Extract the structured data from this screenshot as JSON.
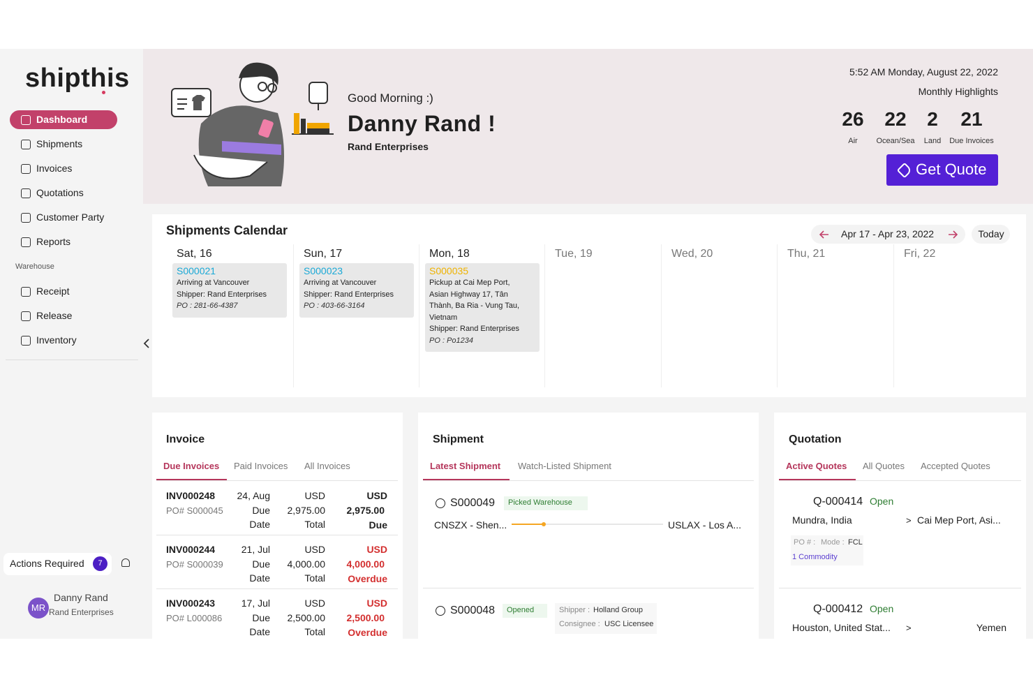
{
  "sidebar": {
    "logo": "shipthis",
    "nav": [
      "Dashboard",
      "Shipments",
      "Invoices",
      "Quotations",
      "Customer Party",
      "Reports"
    ],
    "warehouse_label": "Warehouse",
    "warehouse_nav": [
      "Receipt",
      "Release",
      "Inventory"
    ],
    "actions_label": "Actions Required",
    "actions_count": 7,
    "user": {
      "initials": "MR",
      "name": "Danny Rand",
      "company": "Rand Enterprises"
    }
  },
  "header": {
    "greeting": "Good Morning :)",
    "name": "Danny Rand !",
    "company": "Rand Enterprises",
    "datetime": "5:52 AM Monday, August 22, 2022",
    "highlights_title": "Monthly Highlights",
    "highlights": [
      {
        "value": 26,
        "label": "Air"
      },
      {
        "value": 22,
        "label": "Ocean/Sea"
      },
      {
        "value": 2,
        "label": "Land"
      },
      {
        "value": 21,
        "label": "Due Invoices"
      }
    ],
    "button": "Get Quote"
  },
  "calendar": {
    "title": "Shipments Calendar",
    "range": "Apr 17 - Apr 23, 2022",
    "today_button": "Today",
    "days": [
      {
        "label": "Sat, 16",
        "events": [
          {
            "id": "S000021",
            "color": "#1ba9d6",
            "details": [
              "Arriving at Vancouver",
              "Shipper: Rand Enterprises"
            ],
            "po": "PO : 281-66-4387"
          }
        ]
      },
      {
        "label": "Sun, 17",
        "events": [
          {
            "id": "S000023",
            "color": "#1ba9d6",
            "details": [
              "Arriving at Vancouver",
              "Shipper: Rand Enterprises"
            ],
            "po": "PO : 403-66-3164"
          }
        ]
      },
      {
        "label": "Mon, 18",
        "events": [
          {
            "id": "S000035",
            "color": "#efb300",
            "details": [
              "Pickup at Cai Mep Port,",
              "Asian Highway 17, Tân",
              "Thành, Ba Ria - Vung Tau,",
              "Vietnam",
              "Shipper: Rand Enterprises"
            ],
            "po": "PO : Po1234"
          }
        ]
      },
      {
        "label": "Tue, 19",
        "events": []
      },
      {
        "label": "Wed, 20",
        "events": []
      },
      {
        "label": "Thu, 21",
        "events": []
      },
      {
        "label": "Fri, 22",
        "events": []
      }
    ]
  },
  "invoice": {
    "title": "Invoice",
    "tabs": [
      "Due Invoices",
      "Paid Invoices",
      "All Invoices"
    ],
    "rows": [
      {
        "id": "INV000248",
        "po": "PO# S000045",
        "due_date": "24, Aug",
        "due_label": "Due",
        "date_label": "Date",
        "currency": "USD",
        "amount": "2,975.00",
        "amount_label": "Total",
        "total_currency": "USD",
        "total": "2,975.00",
        "status": "Due",
        "overdue": false
      },
      {
        "id": "INV000244",
        "po": "PO# S000039",
        "due_date": "21, Jul",
        "due_label": "Due",
        "date_label": "Date",
        "currency": "USD",
        "amount": "4,000.00",
        "amount_label": "Total",
        "total_currency": "USD",
        "total": "4,000.00",
        "status": "Overdue",
        "overdue": true
      },
      {
        "id": "INV000243",
        "po": "PO# L000086",
        "due_date": "17, Jul",
        "due_label": "Due",
        "date_label": "Date",
        "currency": "USD",
        "amount": "2,500.00",
        "amount_label": "Total",
        "total_currency": "USD",
        "total": "2,500.00",
        "status": "Overdue",
        "overdue": true
      }
    ]
  },
  "shipment": {
    "title": "Shipment",
    "tabs": [
      "Latest Shipment",
      "Watch-Listed Shipment"
    ],
    "items": [
      {
        "id": "S000049",
        "status": "Picked Warehouse",
        "origin": "CNSZX - Shen...",
        "destination": "USLAX - Los A..."
      },
      {
        "id": "S000048",
        "status": "Opened",
        "shipper_label": "Shipper :",
        "shipper": "Holland Group",
        "consignee_label": "Consignee :",
        "consignee": "USC Licensee"
      }
    ]
  },
  "quotation": {
    "title": "Quotation",
    "tabs": [
      "Active Quotes",
      "All Quotes",
      "Accepted Quotes"
    ],
    "items": [
      {
        "id": "Q-000414",
        "status": "Open",
        "origin": "Mundra, India",
        "arrow": ">",
        "destination": "Cai Mep Port, Asi...",
        "po_label": "PO # :",
        "mode_label": "Mode :",
        "mode": "FCL",
        "commodity": "1 Commodity"
      },
      {
        "id": "Q-000412",
        "status": "Open",
        "origin": "Houston, United Stat...",
        "arrow": ">",
        "destination": "Yemen"
      }
    ]
  }
}
